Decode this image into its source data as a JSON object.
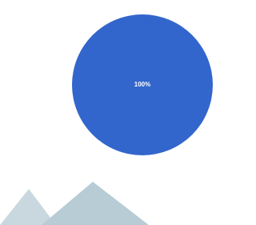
{
  "chart_data": {
    "type": "pie",
    "values": [
      100
    ],
    "value_labels": [
      "100%"
    ],
    "colors": [
      "#3366cc"
    ]
  }
}
